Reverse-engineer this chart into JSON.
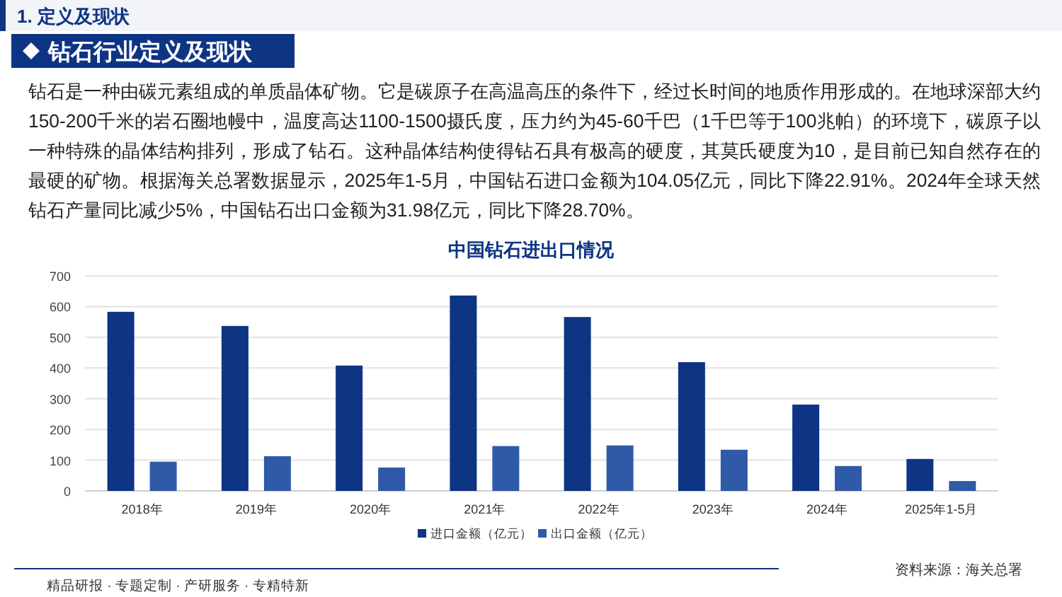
{
  "chart_data": {
    "type": "bar",
    "title": "中国钻石进出口情况",
    "categories": [
      "2018年",
      "2019年",
      "2020年",
      "2021年",
      "2022年",
      "2023年",
      "2024年",
      "2025年1-5月"
    ],
    "series": [
      {
        "name": "进口金额（亿元）",
        "color": "#0e3484",
        "values": [
          583,
          537,
          408,
          636,
          566,
          419,
          281,
          104
        ]
      },
      {
        "name": "出口金额（亿元）",
        "color": "#2f5aa8",
        "values": [
          95,
          113,
          76,
          146,
          148,
          134,
          81,
          32
        ]
      }
    ],
    "ylim": [
      0,
      700
    ],
    "yticks": [
      0,
      100,
      200,
      300,
      400,
      500,
      600,
      700
    ],
    "grid": "y",
    "legend": "bottom",
    "annotations": [
      "1. 定义及现状",
      "钻石行业定义及现状",
      "钻石是一种由碳元素组成的单质晶体矿物。它是碳原子在高温高压的条件下，经过长时间的地质作用形成的。在地球深部大约150-200千米的岩石圈地幔中，温度高达1100-1500摄氏度，压力约为45-60千巴（1千巴等于100兆帕）的环境下，碳原子以一种特殊的晶体结构排列，形成了钻石。这种晶体结构使得钻石具有极高的硬度，其莫氏硬度为10，是目前已知自然存在的最硬的矿物。根据海关总署数据显示，2025年1-5月，中国钻石进口金额为104.05亿元，同比下降22.91%。2024年全球天然钻石产量同比减少5%，中国钻石出口金额为31.98亿元，同比下降28.70%。",
      "资料来源：海关总署",
      "精品研报 · 专题定制 · 产研服务 · 专精特新"
    ]
  }
}
